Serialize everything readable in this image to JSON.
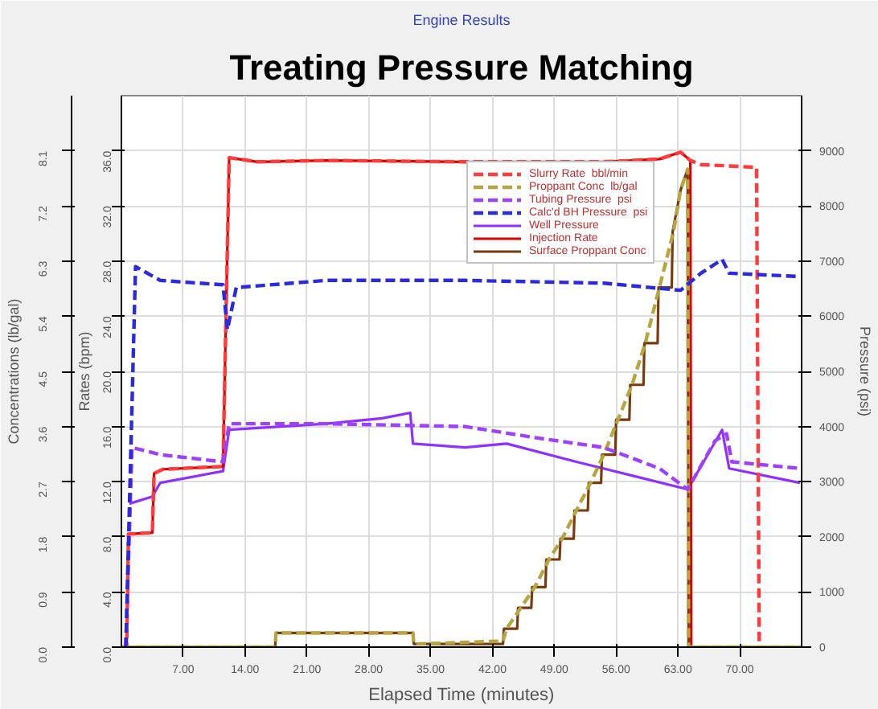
{
  "chart_data": {
    "type": "line",
    "title": "Engine Results",
    "subtitle": "Treating Pressure Matching",
    "xlabel": "Elapsed Time (minutes)",
    "ylabel": "Rates (bpm)",
    "y2label": "Concentrations (lb/gal)",
    "y3label": "Pressure (psi)",
    "xlim": [
      0,
      77
    ],
    "xticks": [
      {
        "value": 7,
        "label": "7.00"
      },
      {
        "value": 14,
        "label": "14.00"
      },
      {
        "value": 21,
        "label": "21.00"
      },
      {
        "value": 28,
        "label": "28.00"
      },
      {
        "value": 35,
        "label": "35.00"
      },
      {
        "value": 42,
        "label": "42.00"
      },
      {
        "value": 49,
        "label": "49.00"
      },
      {
        "value": 56,
        "label": "56.00"
      },
      {
        "value": 63,
        "label": "63.00"
      },
      {
        "value": 70,
        "label": "70.00"
      }
    ],
    "ylim": [
      0,
      40
    ],
    "yticks": [
      {
        "value": 0,
        "label": "0.0"
      },
      {
        "value": 4,
        "label": "4.0"
      },
      {
        "value": 8,
        "label": "8.0"
      },
      {
        "value": 12,
        "label": "12.0"
      },
      {
        "value": 16,
        "label": "16.0"
      },
      {
        "value": 20,
        "label": "20.0"
      },
      {
        "value": 24,
        "label": "24.0"
      },
      {
        "value": 28,
        "label": "28.0"
      },
      {
        "value": 32,
        "label": "32.0"
      },
      {
        "value": 36,
        "label": "36.0"
      }
    ],
    "y2lim": [
      0,
      9
    ],
    "y2ticks": [
      {
        "value": 0,
        "label": "0.0"
      },
      0.9,
      1.8,
      2.7,
      3.6,
      4.5,
      5.4,
      6.3,
      7.2,
      8.1
    ],
    "y3lim": [
      0,
      10000
    ],
    "y3ticks": [
      0,
      1000,
      2000,
      3000,
      4000,
      5000,
      6000,
      7000,
      8000,
      9000
    ],
    "grid": true,
    "legend": "top",
    "series": [
      {
        "name": "Slurry Rate  bbl/min",
        "color": "#ff3b3b",
        "line_style": "dashed",
        "x": [
          0,
          0.6,
          0.8,
          3.5,
          3.7,
          4.7,
          11.5,
          12.2,
          15.4,
          23.2,
          38.9,
          54.6,
          60.9,
          63.3,
          64.4,
          65.6,
          71.9,
          72.2
        ],
        "values": [
          0,
          0,
          8.2,
          8.3,
          12.6,
          12.9,
          13.1,
          35.5,
          35.2,
          35.3,
          35.2,
          35.2,
          35.4,
          35.9,
          35.3,
          35.0,
          34.8,
          0
        ]
      },
      {
        "name": "Proppant Conc  lb/gal",
        "color": "#b5a642",
        "line_style": "dashed",
        "axis": "y2",
        "x": [
          0,
          17.4,
          17.5,
          33.0,
          33.1,
          37.4,
          43.2,
          43.6,
          45.2,
          46.8,
          48.4,
          49.9,
          51.5,
          53.1,
          54.6,
          56.2,
          57.8,
          59.3,
          60.9,
          62.5,
          63.3,
          64.1,
          64.2,
          77
        ],
        "values": [
          0,
          0,
          0.23,
          0.23,
          0.05,
          0.07,
          0.1,
          0.3,
          0.64,
          0.98,
          1.43,
          1.77,
          2.23,
          2.68,
          3.14,
          3.71,
          4.28,
          4.96,
          5.87,
          6.78,
          7.46,
          7.8,
          0,
          0
        ]
      },
      {
        "name": "Tubing Pressure  psi",
        "color": "#a040ff",
        "line_style": "dashed",
        "axis": "y3",
        "x": [
          0.5,
          1.2,
          4.4,
          11.5,
          12.2,
          23.2,
          38.9,
          46.8,
          54.6,
          60.9,
          64.1,
          67.2,
          68.5,
          69.1,
          76.8
        ],
        "values": [
          0,
          3620,
          3490,
          3360,
          4050,
          4050,
          4000,
          3800,
          3620,
          3240,
          2860,
          3740,
          3870,
          3360,
          3240
        ]
      },
      {
        "name": "Calc'd BH Pressure  psi",
        "color": "#2a2ae0",
        "line_style": "dashed",
        "axis": "y3",
        "x": [
          0.5,
          1.6,
          4.4,
          11.5,
          12.0,
          13.0,
          23.2,
          38.9,
          54.6,
          63.3,
          65.6,
          68.0,
          68.8,
          76.8
        ],
        "values": [
          0,
          6900,
          6650,
          6570,
          5760,
          6520,
          6650,
          6650,
          6600,
          6470,
          6780,
          7030,
          6780,
          6720
        ]
      },
      {
        "name": "Well Pressure",
        "color": "#9030ff",
        "line_style": "solid",
        "axis": "y3",
        "x": [
          0.9,
          3.5,
          4.4,
          11.5,
          12.2,
          23.2,
          29.5,
          32.7,
          33.0,
          38.9,
          43.6,
          51.5,
          57.8,
          64.1,
          68.0,
          68.8,
          76.8
        ],
        "values": [
          2600,
          2730,
          2980,
          3190,
          3940,
          4050,
          4150,
          4250,
          3690,
          3620,
          3690,
          3360,
          3110,
          2860,
          3940,
          3240,
          2980
        ]
      },
      {
        "name": "Injection Rate",
        "color": "#e00000",
        "line_style": "solid",
        "x": [
          0,
          0.6,
          0.8,
          3.5,
          3.7,
          4.7,
          11.5,
          12.2,
          15.4,
          23.2,
          38.9,
          54.6,
          60.9,
          63.3,
          64.4,
          64.5
        ],
        "values": [
          0,
          0,
          8.2,
          8.3,
          12.6,
          12.9,
          13.1,
          35.5,
          35.2,
          35.3,
          35.2,
          35.2,
          35.4,
          35.9,
          35.3,
          0
        ]
      },
      {
        "name": "Surface Proppant Conc",
        "color": "#7a3b10",
        "line_style": "solid",
        "axis": "y2",
        "x": [
          0,
          17.4,
          17.5,
          33.0,
          33.1,
          43.2,
          43.3,
          44.8,
          44.9,
          46.4,
          46.5,
          48.0,
          48.1,
          49.6,
          49.7,
          51.2,
          51.3,
          52.8,
          52.9,
          54.3,
          54.4,
          55.9,
          56.0,
          57.5,
          57.6,
          59.1,
          59.2,
          60.7,
          60.8,
          62.3,
          62.4,
          63.3,
          64.1,
          64.2,
          77
        ],
        "values": [
          0,
          0,
          0.23,
          0.23,
          0.05,
          0.05,
          0.3,
          0.3,
          0.64,
          0.64,
          0.98,
          0.98,
          1.43,
          1.43,
          1.77,
          1.77,
          2.23,
          2.23,
          2.68,
          2.68,
          3.14,
          3.14,
          3.71,
          3.71,
          4.28,
          4.28,
          4.96,
          4.96,
          5.87,
          5.87,
          6.78,
          7.46,
          7.8,
          0,
          0
        ]
      }
    ]
  }
}
